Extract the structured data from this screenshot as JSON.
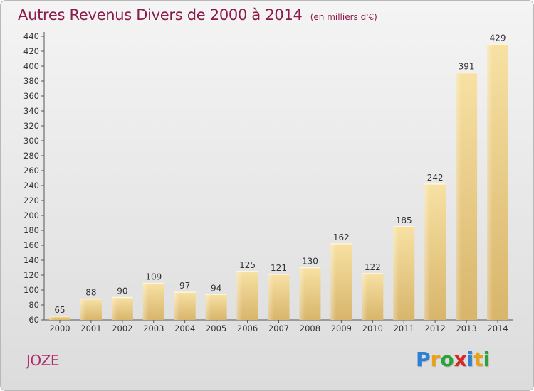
{
  "chart_data": {
    "type": "bar",
    "title": "Autres Revenus Divers de 2000 à 2014",
    "subtitle": "(en milliers d'€)",
    "categories": [
      "2000",
      "2001",
      "2002",
      "2003",
      "2004",
      "2005",
      "2006",
      "2007",
      "2008",
      "2009",
      "2010",
      "2011",
      "2012",
      "2013",
      "2014"
    ],
    "values": [
      65,
      88,
      90,
      109,
      97,
      94,
      125,
      121,
      130,
      162,
      122,
      185,
      242,
      391,
      429
    ],
    "xlabel": "",
    "ylabel": "",
    "ylim": [
      60,
      440
    ],
    "yticks": [
      60,
      80,
      100,
      120,
      140,
      160,
      180,
      200,
      220,
      240,
      260,
      280,
      300,
      320,
      340,
      360,
      380,
      400,
      420,
      440
    ],
    "grid": false,
    "legend": "none",
    "colors": {
      "bar_light": "#f7e1a3",
      "bar_dark": "#d8b56b",
      "axis": "#555555",
      "title": "#8c1a4a"
    }
  },
  "commune": "JOZE",
  "brand": {
    "letters": [
      "P",
      "r",
      "o",
      "x",
      "i",
      "t",
      "i"
    ],
    "colors": [
      "#2e7fd6",
      "#e8a21a",
      "#2aa33a",
      "#d42a2a",
      "#2e7fd6",
      "#e8a21a",
      "#2aa33a"
    ]
  }
}
